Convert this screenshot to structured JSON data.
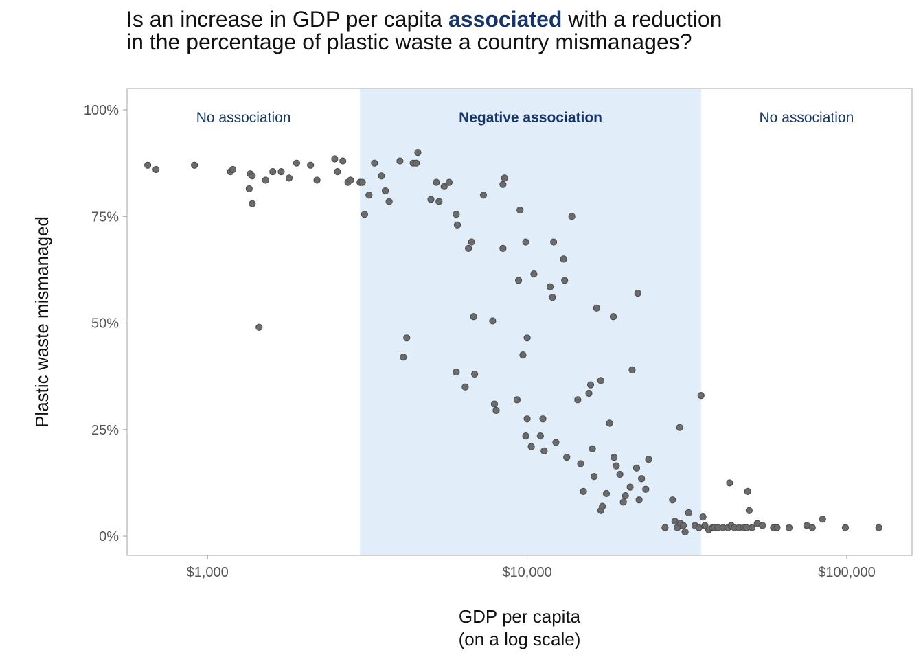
{
  "title": {
    "line1_before": "Is an increase in GDP per capita ",
    "line1_highlight": "associated",
    "line1_after": " with a reduction",
    "line2": "in the percentage of plastic waste a country mismanages?"
  },
  "colors": {
    "highlight_text": "#16356b",
    "band_fill": "#e1edf9",
    "point_fill": "#6b6b6b",
    "frame": "#b3b3b3"
  },
  "chart_data": {
    "type": "scatter",
    "title": "Is an increase in GDP per capita associated with a reduction in the percentage of plastic waste a country mismanages?",
    "xlabel_lines": [
      "GDP per capita",
      "(on a log scale)"
    ],
    "ylabel": "Plastic waste mismanaged",
    "x_scale": "log10",
    "xlim": [
      560,
      160000
    ],
    "ylim": [
      -4.5,
      105
    ],
    "grid": false,
    "x_ticks": [
      {
        "value": 1000,
        "label": "$1,000"
      },
      {
        "value": 10000,
        "label": "$10,000"
      },
      {
        "value": 100000,
        "label": "$100,000"
      }
    ],
    "y_ticks": [
      {
        "value": 0,
        "label": "0%"
      },
      {
        "value": 25,
        "label": "25%"
      },
      {
        "value": 50,
        "label": "50%"
      },
      {
        "value": 75,
        "label": "75%"
      },
      {
        "value": 100,
        "label": "100%"
      }
    ],
    "regions": [
      {
        "label": "No association",
        "x_start": 560,
        "x_end": 3000,
        "shaded": false,
        "bold": false
      },
      {
        "label": "Negative association",
        "x_start": 3000,
        "x_end": 35000,
        "shaded": true,
        "bold": true
      },
      {
        "label": "No association",
        "x_start": 35000,
        "x_end": 160000,
        "shaded": false,
        "bold": false
      }
    ],
    "points": [
      [
        650,
        87
      ],
      [
        690,
        86
      ],
      [
        910,
        87
      ],
      [
        1180,
        85.5
      ],
      [
        1200,
        86
      ],
      [
        1360,
        85
      ],
      [
        1380,
        84.5
      ],
      [
        1350,
        81.5
      ],
      [
        1380,
        78
      ],
      [
        1450,
        49
      ],
      [
        1520,
        83.5
      ],
      [
        1600,
        85.5
      ],
      [
        1700,
        85.5
      ],
      [
        1800,
        84
      ],
      [
        1900,
        87.5
      ],
      [
        2100,
        87
      ],
      [
        2200,
        83.5
      ],
      [
        2500,
        88.5
      ],
      [
        2650,
        88
      ],
      [
        2550,
        85.5
      ],
      [
        2750,
        83
      ],
      [
        2800,
        83.5
      ],
      [
        3000,
        83
      ],
      [
        3050,
        83
      ],
      [
        3100,
        75.5
      ],
      [
        3200,
        80
      ],
      [
        3330,
        87.5
      ],
      [
        3500,
        84.5
      ],
      [
        3600,
        81
      ],
      [
        3700,
        78.5
      ],
      [
        4000,
        88
      ],
      [
        4400,
        87.5
      ],
      [
        4550,
        90
      ],
      [
        4500,
        87.5
      ],
      [
        4200,
        46.5
      ],
      [
        4100,
        42
      ],
      [
        5000,
        79
      ],
      [
        5200,
        83
      ],
      [
        5300,
        78.5
      ],
      [
        5500,
        82
      ],
      [
        5700,
        83
      ],
      [
        6000,
        75.5
      ],
      [
        6050,
        73
      ],
      [
        6000,
        38.5
      ],
      [
        6400,
        35
      ],
      [
        6550,
        67.5
      ],
      [
        6700,
        69
      ],
      [
        6800,
        51.5
      ],
      [
        6850,
        38
      ],
      [
        7300,
        80
      ],
      [
        7800,
        50.5
      ],
      [
        7900,
        31
      ],
      [
        8000,
        29.5
      ],
      [
        8400,
        82.5
      ],
      [
        8500,
        84
      ],
      [
        8400,
        67.5
      ],
      [
        9300,
        32
      ],
      [
        9400,
        60
      ],
      [
        9500,
        76.5
      ],
      [
        9700,
        42.5
      ],
      [
        9900,
        69
      ],
      [
        10000,
        46.5
      ],
      [
        10000,
        27.5
      ],
      [
        9900,
        23.5
      ],
      [
        10300,
        21
      ],
      [
        10500,
        61.5
      ],
      [
        11000,
        23.5
      ],
      [
        11200,
        27.5
      ],
      [
        11300,
        20
      ],
      [
        11800,
        58.5
      ],
      [
        12000,
        56
      ],
      [
        12100,
        69
      ],
      [
        12300,
        22
      ],
      [
        13000,
        65
      ],
      [
        13100,
        60
      ],
      [
        13300,
        18.5
      ],
      [
        13800,
        75
      ],
      [
        14400,
        32
      ],
      [
        14700,
        17
      ],
      [
        15000,
        10.5
      ],
      [
        15600,
        33.5
      ],
      [
        15800,
        35.5
      ],
      [
        16000,
        20.5
      ],
      [
        16200,
        14
      ],
      [
        16500,
        53.5
      ],
      [
        17000,
        36.5
      ],
      [
        17000,
        6
      ],
      [
        17200,
        7
      ],
      [
        17700,
        10
      ],
      [
        18100,
        26.5
      ],
      [
        18600,
        51.5
      ],
      [
        18700,
        18.5
      ],
      [
        19000,
        16.5
      ],
      [
        19500,
        14.5
      ],
      [
        20000,
        8
      ],
      [
        20300,
        9.5
      ],
      [
        21000,
        11.5
      ],
      [
        21300,
        39
      ],
      [
        22000,
        16
      ],
      [
        22200,
        57
      ],
      [
        22400,
        8.5
      ],
      [
        22800,
        13.5
      ],
      [
        23500,
        11
      ],
      [
        24000,
        18
      ],
      [
        27000,
        2
      ],
      [
        28500,
        8.5
      ],
      [
        29000,
        3.5
      ],
      [
        29500,
        2
      ],
      [
        30000,
        25.5
      ],
      [
        30200,
        3
      ],
      [
        30800,
        2.5
      ],
      [
        31200,
        1
      ],
      [
        32000,
        5.5
      ],
      [
        33500,
        2.5
      ],
      [
        34500,
        2
      ],
      [
        35000,
        33
      ],
      [
        35500,
        4.5
      ],
      [
        36000,
        2.5
      ],
      [
        37000,
        1.5
      ],
      [
        38000,
        2
      ],
      [
        38500,
        2
      ],
      [
        39500,
        2
      ],
      [
        41000,
        2
      ],
      [
        42500,
        2
      ],
      [
        43000,
        12.5
      ],
      [
        43500,
        2.5
      ],
      [
        44500,
        2
      ],
      [
        46000,
        2
      ],
      [
        47500,
        2
      ],
      [
        48500,
        2
      ],
      [
        49500,
        6
      ],
      [
        49000,
        10.5
      ],
      [
        50500,
        2
      ],
      [
        52500,
        3
      ],
      [
        54500,
        2.5
      ],
      [
        59000,
        2
      ],
      [
        60500,
        2
      ],
      [
        66000,
        2
      ],
      [
        75000,
        2.5
      ],
      [
        78000,
        2
      ],
      [
        84000,
        4
      ],
      [
        99000,
        2
      ],
      [
        126000,
        2
      ]
    ]
  }
}
